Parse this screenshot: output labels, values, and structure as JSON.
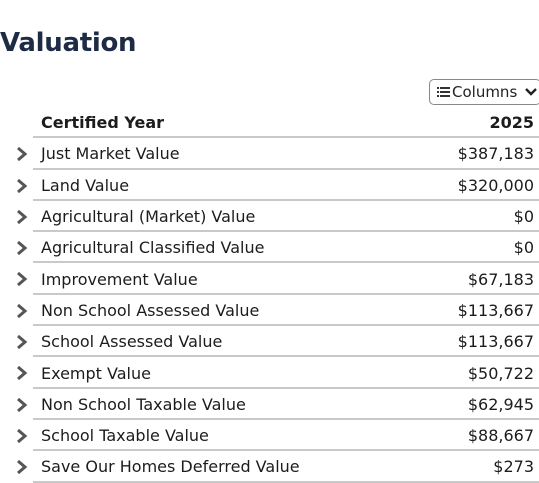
{
  "header": {
    "title": "Valuation"
  },
  "toolbar": {
    "button": "Columns"
  },
  "table": {
    "columns": [
      "Certified Year",
      "2025"
    ],
    "rows": [
      [
        "Just Market Value",
        "$387,183"
      ],
      [
        "Land Value",
        "$320,000"
      ],
      [
        "Agricultural (Market) Value",
        "$0"
      ],
      [
        "Agricultural Classified Value",
        "$0"
      ],
      [
        "Improvement Value",
        "$67,183"
      ],
      [
        "Non School Assessed Value",
        "$113,667"
      ],
      [
        "School Assessed Value",
        "$113,667"
      ],
      [
        "Exempt Value",
        "$50,722"
      ],
      [
        "Non School Taxable Value",
        "$62,945"
      ],
      [
        "School Taxable Value",
        "$88,667"
      ],
      [
        "Save Our Homes Deferred Value",
        "$273"
      ]
    ]
  }
}
